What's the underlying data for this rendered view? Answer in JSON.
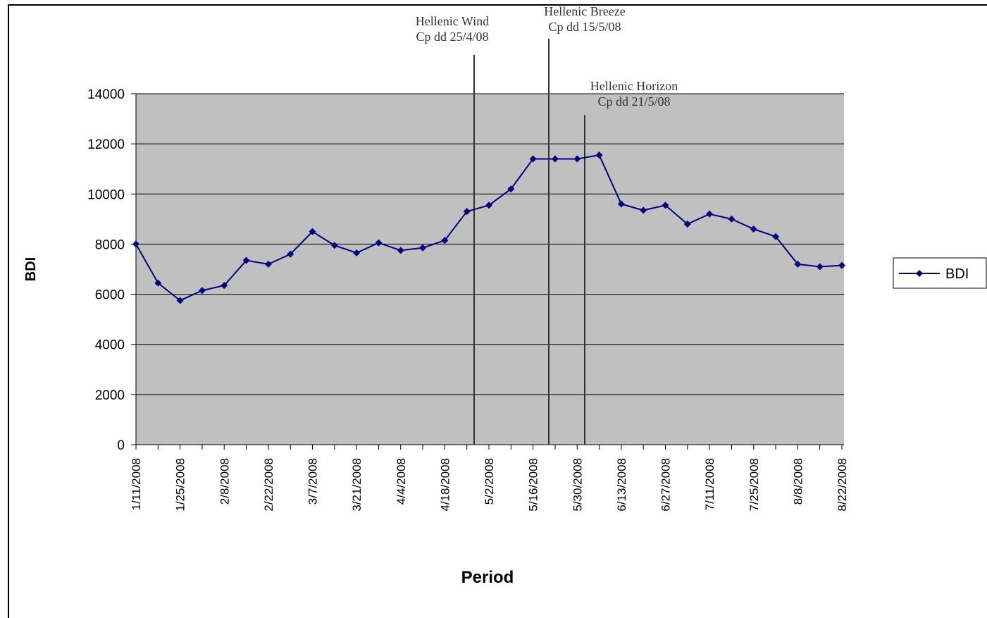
{
  "chart_data": {
    "type": "line",
    "x_label": "Period",
    "y_label": "BDI",
    "categories": [
      "1/11/2008",
      null,
      "1/25/2008",
      null,
      "2/8/2008",
      null,
      "2/22/2008",
      null,
      "3/7/2008",
      null,
      "3/21/2008",
      null,
      "4/4/2008",
      null,
      "4/18/2008",
      null,
      "5/2/2008",
      null,
      "5/16/2008",
      null,
      "5/30/2008",
      null,
      "6/13/2008",
      null,
      "6/27/2008",
      null,
      "7/11/2008",
      null,
      "7/25/2008",
      null,
      "8/8/2008",
      null,
      "8/22/2008"
    ],
    "series": [
      {
        "name": "BDI",
        "color": "#000080",
        "values": [
          8000,
          6450,
          5750,
          6150,
          6350,
          7350,
          7200,
          7600,
          8500,
          7950,
          7650,
          8050,
          7750,
          7850,
          8150,
          9300,
          9550,
          10200,
          11400,
          11400,
          11400,
          11550,
          9600,
          9350,
          9550,
          8800,
          9200,
          9000,
          8600,
          8300,
          7200,
          7100,
          7150
        ]
      }
    ],
    "ylim": [
      0,
      14000
    ],
    "yticks": [
      0,
      2000,
      4000,
      6000,
      8000,
      10000,
      12000,
      14000
    ],
    "grid": true,
    "legend": "right",
    "annotations": [
      {
        "lines": [
          "Hellenic Wind",
          "Cp dd 25/4/08"
        ]
      },
      {
        "lines": [
          "Hellenic Breeze",
          "Cp dd 15/5/08"
        ]
      },
      {
        "lines": [
          "Hellenic Horizon",
          "Cp dd 21/5/08"
        ]
      }
    ]
  }
}
